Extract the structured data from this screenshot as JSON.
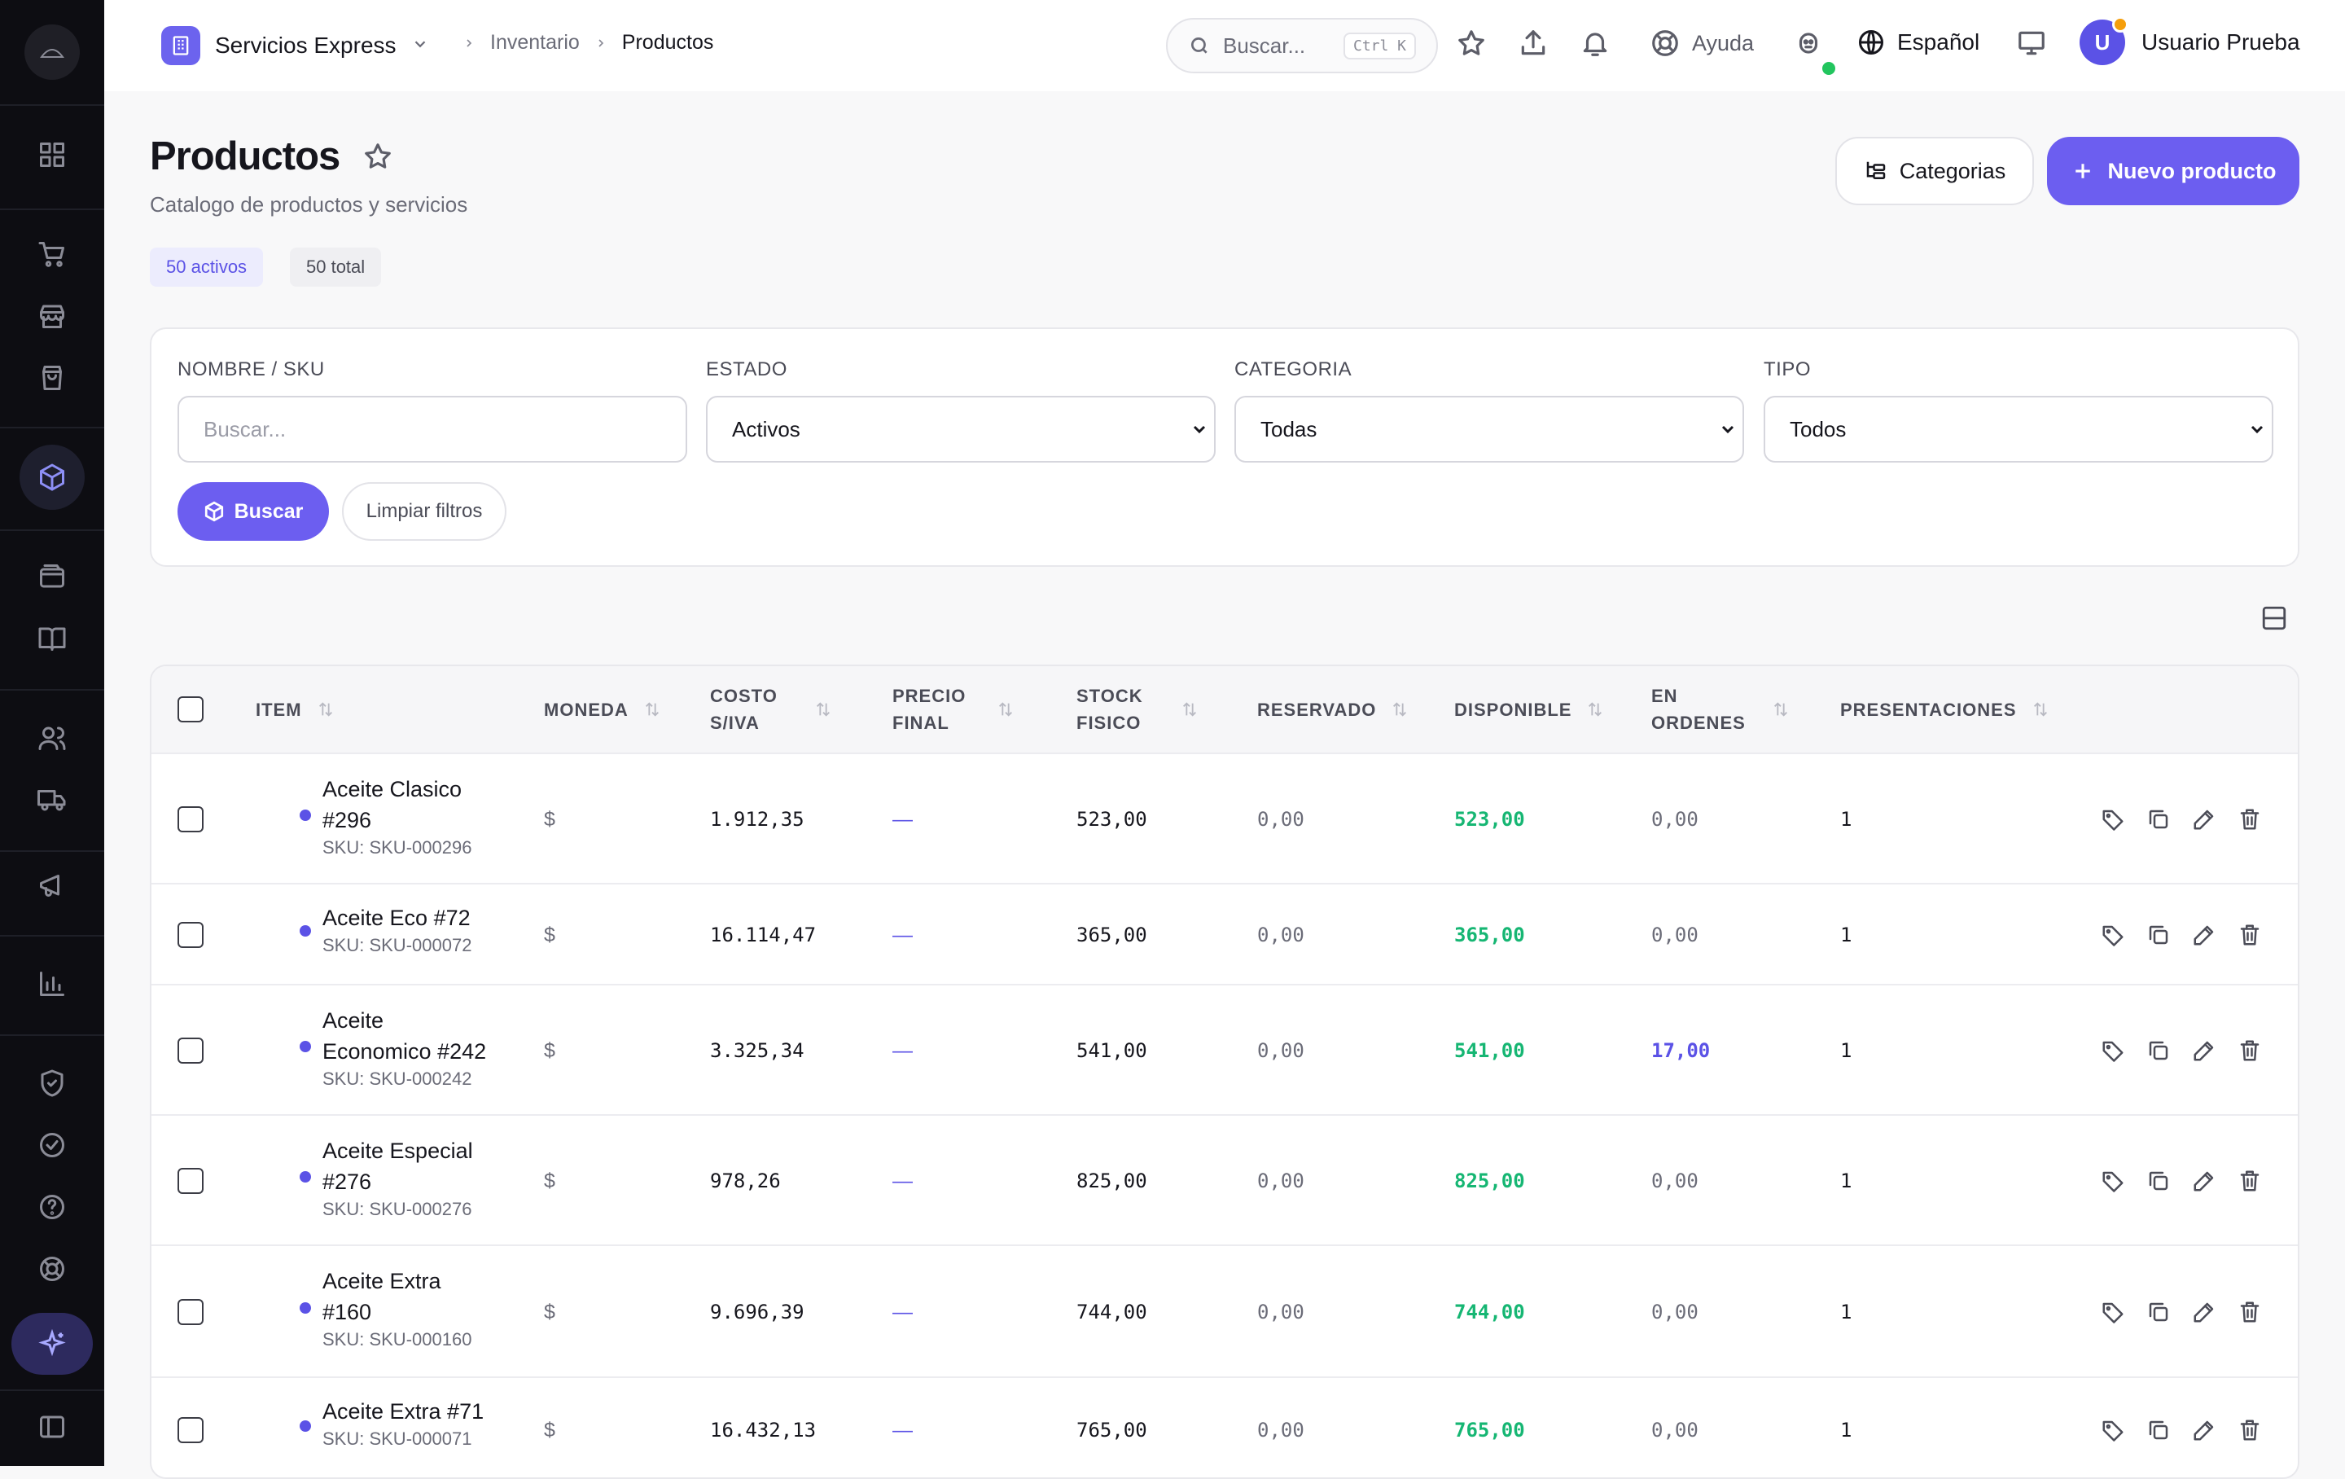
{
  "org": {
    "name": "Servicios Express"
  },
  "breadcrumb": {
    "parent": "Inventario",
    "current": "Productos"
  },
  "topbar": {
    "search_placeholder": "Buscar...",
    "search_shortcut": "Ctrl K",
    "help_label": "Ayuda",
    "language": "Español",
    "user_name": "Usuario Prueba",
    "user_initial": "U"
  },
  "page": {
    "title": "Productos",
    "subtitle": "Catalogo de productos y servicios",
    "active_count": "50 activos",
    "total_count": "50 total",
    "categories_button": "Categorias",
    "new_button": "Nuevo producto"
  },
  "filters": {
    "name_label": "NOMBRE / SKU",
    "name_placeholder": "Buscar...",
    "status_label": "ESTADO",
    "status_value": "Activos",
    "category_label": "CATEGORIA",
    "category_value": "Todas",
    "type_label": "TIPO",
    "type_value": "Todos",
    "search_button": "Buscar",
    "clear_button": "Limpiar filtros"
  },
  "table": {
    "columns": {
      "item": "ITEM",
      "currency": "MONEDA",
      "cost": "COSTO S/IVA",
      "final_price": "PRECIO FINAL",
      "stock": "STOCK FISICO",
      "reserved": "RESERVADO",
      "available": "DISPONIBLE",
      "in_orders": "EN ORDENES",
      "presentations": "PRESENTACIONES"
    },
    "rows": [
      {
        "name": "Aceite Clasico #296",
        "sku": "SKU: SKU-000296",
        "currency": "$",
        "cost": "1.912,35",
        "final": "—",
        "stock": "523,00",
        "reserved": "0,00",
        "available": "523,00",
        "orders": "0,00",
        "presentations": "1"
      },
      {
        "name": "Aceite Eco #72",
        "sku": "SKU: SKU-000072",
        "currency": "$",
        "cost": "16.114,47",
        "final": "—",
        "stock": "365,00",
        "reserved": "0,00",
        "available": "365,00",
        "orders": "0,00",
        "presentations": "1"
      },
      {
        "name": "Aceite Economico #242",
        "sku": "SKU: SKU-000242",
        "currency": "$",
        "cost": "3.325,34",
        "final": "—",
        "stock": "541,00",
        "reserved": "0,00",
        "available": "541,00",
        "orders": "17,00",
        "presentations": "1"
      },
      {
        "name": "Aceite Especial #276",
        "sku": "SKU: SKU-000276",
        "currency": "$",
        "cost": "978,26",
        "final": "—",
        "stock": "825,00",
        "reserved": "0,00",
        "available": "825,00",
        "orders": "0,00",
        "presentations": "1"
      },
      {
        "name": "Aceite Extra #160",
        "sku": "SKU: SKU-000160",
        "currency": "$",
        "cost": "9.696,39",
        "final": "—",
        "stock": "744,00",
        "reserved": "0,00",
        "available": "744,00",
        "orders": "0,00",
        "presentations": "1"
      },
      {
        "name": "Aceite Extra #71",
        "sku": "SKU: SKU-000071",
        "currency": "$",
        "cost": "16.432,13",
        "final": "—",
        "stock": "765,00",
        "reserved": "0,00",
        "available": "765,00",
        "orders": "0,00",
        "presentations": "1"
      }
    ]
  },
  "colors": {
    "accent": "#6c5ef0",
    "sidebar": "#0d0d12",
    "available": "#16b673"
  }
}
